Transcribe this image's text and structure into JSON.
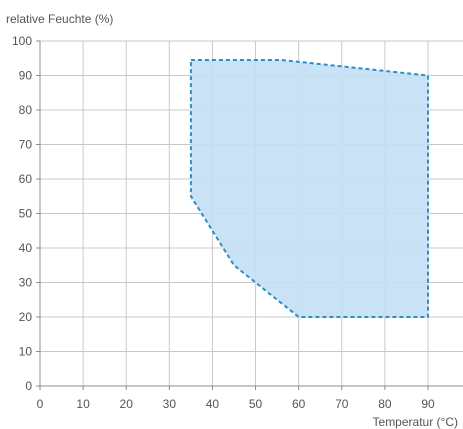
{
  "chart_data": {
    "type": "area",
    "title": "",
    "xlabel": "Temperatur (°C)",
    "ylabel": "relative Feuchte (%)",
    "xlim": [
      0,
      90
    ],
    "ylim": [
      0,
      100
    ],
    "x_ticks": [
      0,
      10,
      20,
      30,
      40,
      50,
      60,
      70,
      80,
      90
    ],
    "y_ticks": [
      0,
      10,
      20,
      30,
      40,
      50,
      60,
      70,
      80,
      90,
      100
    ],
    "grid": true,
    "legend": "none",
    "series": [
      {
        "points": [
          {
            "x": 35,
            "y": 94.5
          },
          {
            "x": 56,
            "y": 94.5
          },
          {
            "x": 90,
            "y": 90
          },
          {
            "x": 90,
            "y": 20
          },
          {
            "x": 60,
            "y": 20
          },
          {
            "x": 45,
            "y": 35
          },
          {
            "x": 35,
            "y": 55
          }
        ]
      }
    ],
    "colors": {
      "fill": "#c3dff5",
      "border": "#2a8fc7",
      "grid": "#c8c8c8",
      "axis": "#8c8c8c",
      "text": "#555555"
    }
  }
}
